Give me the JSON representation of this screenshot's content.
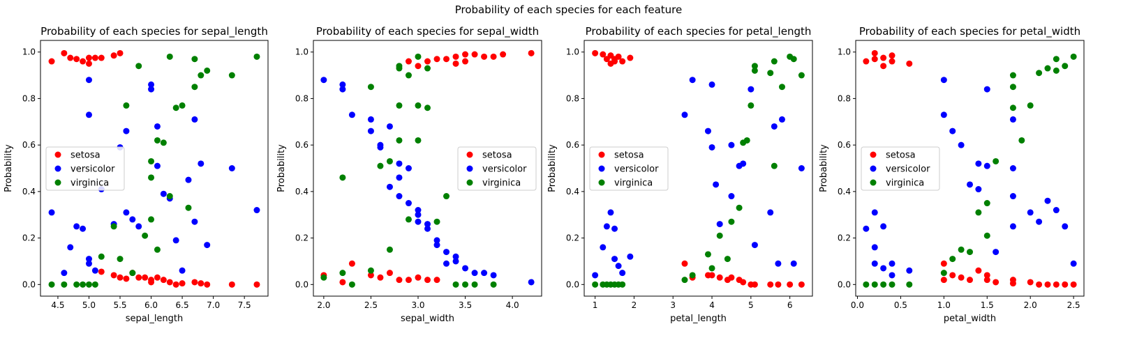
{
  "figure": {
    "suptitle": "Probability of each species for each feature"
  },
  "colors": {
    "setosa": "#ff0000",
    "versicolor": "#0000ff",
    "virginica": "#008000"
  },
  "chart_data": [
    {
      "type": "scatter",
      "title": "Probability of each species for sepal_length",
      "xlabel": "sepal_length",
      "ylabel": "Probability",
      "xlim": [
        4.22,
        7.88
      ],
      "ylim": [
        -0.05,
        1.05
      ],
      "xticks": [
        "4.5",
        "5.0",
        "5.5",
        "6.0",
        "6.5",
        "7.0",
        "7.5"
      ],
      "yticks": [
        "0.0",
        "0.2",
        "0.4",
        "0.6",
        "0.8",
        "1.0"
      ],
      "legend_position": "center-left",
      "series": [
        {
          "name": "setosa",
          "color": "#ff0000",
          "x": [
            4.4,
            4.6,
            4.7,
            4.8,
            4.9,
            5.0,
            5.0,
            5.1,
            5.2,
            5.4,
            5.5,
            5.2,
            5.4,
            5.5,
            5.6,
            5.7,
            5.8,
            5.9,
            6.0,
            6.0,
            6.1,
            6.2,
            6.3,
            6.4,
            6.5,
            6.7,
            6.8,
            6.9,
            7.3,
            7.7
          ],
          "y": [
            0.96,
            0.995,
            0.975,
            0.97,
            0.96,
            0.975,
            0.95,
            0.975,
            0.975,
            0.985,
            0.995,
            0.055,
            0.04,
            0.03,
            0.025,
            0.05,
            0.03,
            0.03,
            0.02,
            0.01,
            0.03,
            0.02,
            0.01,
            0.0,
            0.005,
            0.01,
            0.005,
            0.0,
            0.0,
            0.0
          ]
        },
        {
          "name": "versicolor",
          "color": "#0000ff",
          "x": [
            4.4,
            4.6,
            4.7,
            4.8,
            4.9,
            5.0,
            5.0,
            5.0,
            5.0,
            5.1,
            5.2,
            5.4,
            5.5,
            5.6,
            5.6,
            5.7,
            5.8,
            6.0,
            6.0,
            6.1,
            6.1,
            6.2,
            6.3,
            6.4,
            6.5,
            6.6,
            6.7,
            6.7,
            6.8,
            6.9,
            7.3,
            7.7
          ],
          "y": [
            0.31,
            0.05,
            0.16,
            0.25,
            0.24,
            0.88,
            0.73,
            0.09,
            0.11,
            0.06,
            0.41,
            0.26,
            0.59,
            0.66,
            0.31,
            0.28,
            0.25,
            0.86,
            0.84,
            0.68,
            0.51,
            0.39,
            0.37,
            0.19,
            0.06,
            0.45,
            0.71,
            0.27,
            0.52,
            0.17,
            0.5,
            0.32
          ]
        },
        {
          "name": "virginica",
          "color": "#008000",
          "x": [
            4.4,
            4.6,
            4.8,
            4.9,
            5.0,
            5.1,
            5.2,
            5.4,
            5.5,
            5.6,
            5.7,
            5.8,
            5.9,
            6.0,
            6.0,
            6.0,
            6.1,
            6.1,
            6.2,
            6.3,
            6.3,
            6.4,
            6.5,
            6.6,
            6.7,
            6.7,
            6.8,
            6.9,
            7.3,
            7.7
          ],
          "y": [
            0.0,
            0.0,
            0.0,
            0.0,
            0.0,
            0.0,
            0.12,
            0.25,
            0.11,
            0.77,
            0.05,
            0.94,
            0.21,
            0.53,
            0.46,
            0.28,
            0.62,
            0.15,
            0.61,
            0.98,
            0.38,
            0.76,
            0.77,
            0.33,
            0.85,
            0.97,
            0.9,
            0.92,
            0.9,
            0.98
          ]
        }
      ]
    },
    {
      "type": "scatter",
      "title": "Probability of each species for sepal_width",
      "xlabel": "sepal_width",
      "ylabel": "Probability",
      "xlim": [
        1.89,
        4.31
      ],
      "ylim": [
        -0.05,
        1.05
      ],
      "xticks": [
        "2.0",
        "2.5",
        "3.0",
        "3.5",
        "4.0"
      ],
      "yticks": [
        "0.0",
        "0.2",
        "0.4",
        "0.6",
        "0.8",
        "1.0"
      ],
      "legend_position": "center-right",
      "series": [
        {
          "name": "setosa",
          "color": "#ff0000",
          "x": [
            2.0,
            2.2,
            2.3,
            2.5,
            2.6,
            2.7,
            2.8,
            2.9,
            3.0,
            3.1,
            3.2,
            2.9,
            3.0,
            3.1,
            3.2,
            3.3,
            3.4,
            3.4,
            3.5,
            3.5,
            3.6,
            3.7,
            3.8,
            3.9,
            4.2
          ],
          "y": [
            0.04,
            0.01,
            0.09,
            0.04,
            0.03,
            0.05,
            0.02,
            0.96,
            0.94,
            0.96,
            0.97,
            0.02,
            0.03,
            0.02,
            0.02,
            0.97,
            0.98,
            0.95,
            0.99,
            0.96,
            0.99,
            0.98,
            0.98,
            0.99,
            0.995
          ]
        },
        {
          "name": "versicolor",
          "color": "#0000ff",
          "x": [
            2.0,
            2.2,
            2.2,
            2.3,
            2.5,
            2.5,
            2.6,
            2.6,
            2.7,
            2.7,
            2.8,
            2.8,
            2.8,
            2.9,
            2.9,
            3.0,
            3.0,
            3.0,
            3.1,
            3.1,
            3.2,
            3.2,
            3.3,
            3.3,
            3.4,
            3.4,
            3.5,
            3.6,
            3.7,
            3.8,
            4.2
          ],
          "y": [
            0.88,
            0.86,
            0.84,
            0.73,
            0.71,
            0.66,
            0.6,
            0.59,
            0.68,
            0.42,
            0.52,
            0.46,
            0.38,
            0.5,
            0.35,
            0.32,
            0.3,
            0.27,
            0.26,
            0.24,
            0.19,
            0.17,
            0.14,
            0.09,
            0.12,
            0.1,
            0.07,
            0.05,
            0.05,
            0.04,
            0.01
          ]
        },
        {
          "name": "virginica",
          "color": "#008000",
          "x": [
            2.0,
            2.2,
            2.2,
            2.3,
            2.5,
            2.5,
            2.6,
            2.7,
            2.7,
            2.8,
            2.8,
            2.8,
            2.8,
            2.9,
            2.9,
            3.0,
            3.0,
            3.0,
            3.1,
            3.1,
            3.2,
            3.3,
            3.4,
            3.5,
            3.6,
            3.8
          ],
          "y": [
            0.03,
            0.46,
            0.05,
            0.0,
            0.85,
            0.06,
            0.51,
            0.53,
            0.15,
            0.94,
            0.93,
            0.77,
            0.62,
            0.9,
            0.28,
            0.98,
            0.77,
            0.62,
            0.93,
            0.76,
            0.27,
            0.38,
            0.0,
            0.0,
            0.0,
            0.0
          ]
        }
      ]
    },
    {
      "type": "scatter",
      "title": "Probability of each species for petal_length",
      "xlabel": "petal_length",
      "ylabel": "Probability",
      "xlim": [
        0.72,
        6.58
      ],
      "ylim": [
        -0.05,
        1.05
      ],
      "xticks": [
        "1",
        "2",
        "3",
        "4",
        "5",
        "6"
      ],
      "yticks": [
        "0.0",
        "0.2",
        "0.4",
        "0.6",
        "0.8",
        "1.0"
      ],
      "legend_position": "center-left",
      "series": [
        {
          "name": "setosa",
          "color": "#ff0000",
          "x": [
            1.0,
            1.2,
            1.3,
            1.4,
            1.4,
            1.5,
            1.5,
            1.6,
            1.7,
            1.9,
            3.3,
            3.5,
            3.9,
            4.0,
            4.2,
            4.4,
            4.5,
            4.7,
            4.8,
            5.0,
            5.1,
            5.5,
            5.7,
            6.0,
            6.3
          ],
          "y": [
            0.995,
            0.99,
            0.97,
            0.985,
            0.95,
            0.97,
            0.96,
            0.98,
            0.96,
            0.975,
            0.09,
            0.03,
            0.04,
            0.04,
            0.03,
            0.02,
            0.03,
            0.02,
            0.01,
            0.0,
            0.0,
            0.0,
            0.0,
            0.0,
            0.0
          ]
        },
        {
          "name": "versicolor",
          "color": "#0000ff",
          "x": [
            1.0,
            1.2,
            1.3,
            1.4,
            1.5,
            1.5,
            1.6,
            1.7,
            1.9,
            3.3,
            3.5,
            3.9,
            4.0,
            4.0,
            4.1,
            4.2,
            4.5,
            4.5,
            4.7,
            4.8,
            5.0,
            5.1,
            5.5,
            5.6,
            5.7,
            5.8,
            6.1,
            6.3
          ],
          "y": [
            0.04,
            0.16,
            0.25,
            0.31,
            0.24,
            0.11,
            0.08,
            0.05,
            0.12,
            0.73,
            0.88,
            0.66,
            0.86,
            0.59,
            0.43,
            0.26,
            0.6,
            0.38,
            0.51,
            0.52,
            0.84,
            0.17,
            0.31,
            0.68,
            0.09,
            0.71,
            0.09,
            0.5
          ]
        },
        {
          "name": "virginica",
          "color": "#008000",
          "x": [
            1.0,
            1.2,
            1.3,
            1.4,
            1.5,
            1.6,
            1.7,
            3.3,
            3.5,
            3.9,
            4.0,
            4.2,
            4.4,
            4.5,
            4.7,
            4.8,
            4.9,
            5.0,
            5.1,
            5.1,
            5.5,
            5.6,
            5.6,
            5.8,
            6.0,
            6.1,
            6.3
          ],
          "y": [
            0.0,
            0.0,
            0.0,
            0.0,
            0.0,
            0.0,
            0.0,
            0.02,
            0.04,
            0.13,
            0.07,
            0.21,
            0.11,
            0.27,
            0.33,
            0.61,
            0.62,
            0.77,
            0.94,
            0.92,
            0.91,
            0.96,
            0.51,
            0.85,
            0.98,
            0.97,
            0.9
          ]
        }
      ]
    },
    {
      "type": "scatter",
      "title": "Probability of each species for petal_width",
      "xlabel": "petal_width",
      "ylabel": "Probability",
      "xlim": [
        -0.02,
        2.62
      ],
      "ylim": [
        -0.05,
        1.05
      ],
      "xticks": [
        "0.0",
        "0.5",
        "1.0",
        "1.5",
        "2.0",
        "2.5"
      ],
      "yticks": [
        "0.0",
        "0.2",
        "0.4",
        "0.6",
        "0.8",
        "1.0"
      ],
      "legend_position": "center-left",
      "series": [
        {
          "name": "setosa",
          "color": "#ff0000",
          "x": [
            0.1,
            0.2,
            0.2,
            0.3,
            0.3,
            0.4,
            0.4,
            0.6,
            1.0,
            1.0,
            1.1,
            1.2,
            1.3,
            1.4,
            1.5,
            1.5,
            1.6,
            1.8,
            1.8,
            2.0,
            2.1,
            2.2,
            2.3,
            2.4,
            2.5
          ],
          "y": [
            0.96,
            0.995,
            0.97,
            0.975,
            0.94,
            0.985,
            0.96,
            0.95,
            0.09,
            0.02,
            0.04,
            0.03,
            0.02,
            0.06,
            0.04,
            0.02,
            0.01,
            0.02,
            0.005,
            0.01,
            0.0,
            0.0,
            0.0,
            0.0,
            0.0
          ]
        },
        {
          "name": "versicolor",
          "color": "#0000ff",
          "x": [
            0.1,
            0.2,
            0.2,
            0.2,
            0.3,
            0.3,
            0.4,
            0.4,
            0.6,
            1.0,
            1.0,
            1.1,
            1.2,
            1.3,
            1.4,
            1.4,
            1.5,
            1.5,
            1.6,
            1.8,
            1.8,
            1.8,
            1.8,
            2.0,
            2.1,
            2.2,
            2.3,
            2.4,
            2.5
          ],
          "y": [
            0.24,
            0.31,
            0.16,
            0.09,
            0.25,
            0.07,
            0.09,
            0.04,
            0.06,
            0.88,
            0.73,
            0.66,
            0.6,
            0.43,
            0.52,
            0.41,
            0.84,
            0.51,
            0.14,
            0.71,
            0.5,
            0.38,
            0.25,
            0.31,
            0.27,
            0.36,
            0.32,
            0.25,
            0.09
          ]
        },
        {
          "name": "virginica",
          "color": "#008000",
          "x": [
            0.1,
            0.2,
            0.3,
            0.4,
            0.6,
            1.0,
            1.1,
            1.2,
            1.3,
            1.4,
            1.5,
            1.5,
            1.6,
            1.8,
            1.8,
            1.8,
            1.9,
            2.0,
            2.1,
            2.2,
            2.3,
            2.3,
            2.4,
            2.5
          ],
          "y": [
            0.0,
            0.0,
            0.0,
            0.0,
            0.0,
            0.05,
            0.11,
            0.15,
            0.14,
            0.31,
            0.35,
            0.21,
            0.53,
            0.9,
            0.85,
            0.76,
            0.62,
            0.77,
            0.91,
            0.93,
            0.97,
            0.92,
            0.94,
            0.98
          ]
        }
      ]
    }
  ]
}
